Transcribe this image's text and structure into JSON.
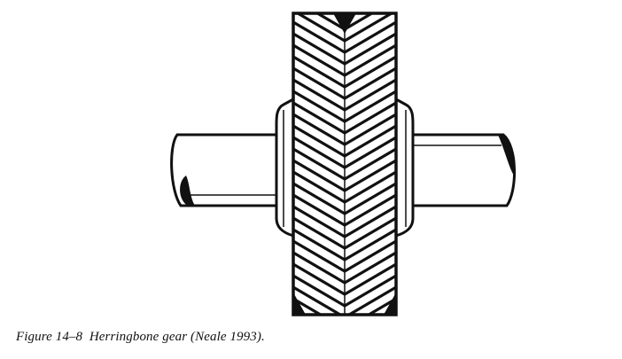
{
  "caption": {
    "label": "Figure 14–8",
    "text": "Herringbone gear (Neale 1993)."
  },
  "colors": {
    "ink": "#111111",
    "paper": "#ffffff"
  }
}
